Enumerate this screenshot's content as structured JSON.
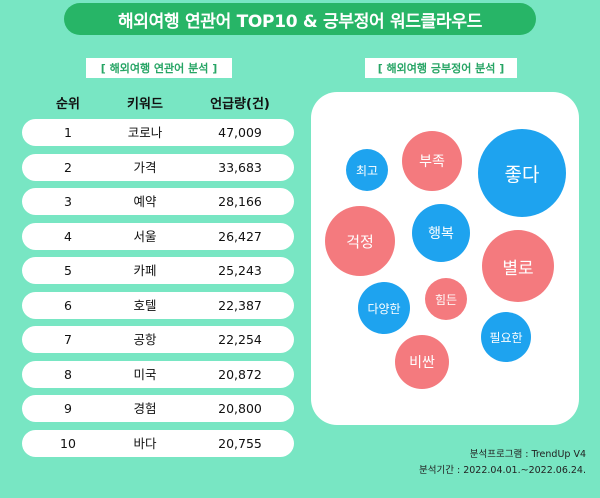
{
  "title": "해외여행 연관어 TOP10 & 긍부정어 워드클라우드",
  "left_section_label": "[ 해외여행 연관어 분석 ]",
  "right_section_label": "[ 해외여행 긍부정어 분석 ]",
  "table": {
    "headers": [
      "순위",
      "키워드",
      "언급량(건)"
    ],
    "rows": [
      {
        "rank": "1",
        "keyword": "코로나",
        "count": "47,009"
      },
      {
        "rank": "2",
        "keyword": "가격",
        "count": "33,683"
      },
      {
        "rank": "3",
        "keyword": "예약",
        "count": "28,166"
      },
      {
        "rank": "4",
        "keyword": "서울",
        "count": "26,427"
      },
      {
        "rank": "5",
        "keyword": "카페",
        "count": "25,243"
      },
      {
        "rank": "6",
        "keyword": "호텔",
        "count": "22,387"
      },
      {
        "rank": "7",
        "keyword": "공항",
        "count": "22,254"
      },
      {
        "rank": "8",
        "keyword": "미국",
        "count": "20,872"
      },
      {
        "rank": "9",
        "keyword": "경험",
        "count": "20,800"
      },
      {
        "rank": "10",
        "keyword": "바다",
        "count": "20,755"
      }
    ]
  },
  "word_cloud": {
    "colors": {
      "positive": "#1ea3ef",
      "negative": "#f47a7e"
    },
    "words": [
      {
        "word": "최고",
        "tone": "positive"
      },
      {
        "word": "부족",
        "tone": "negative"
      },
      {
        "word": "좋다",
        "tone": "positive"
      },
      {
        "word": "걱정",
        "tone": "negative"
      },
      {
        "word": "행복",
        "tone": "positive"
      },
      {
        "word": "별로",
        "tone": "negative"
      },
      {
        "word": "다양한",
        "tone": "positive"
      },
      {
        "word": "힘든",
        "tone": "negative"
      },
      {
        "word": "필요한",
        "tone": "positive"
      },
      {
        "word": "비싼",
        "tone": "negative"
      }
    ]
  },
  "footer": {
    "program": "분석프로그램 : TrendUp V4",
    "period": "분석기간 : 2022.04.01.~2022.06.24."
  }
}
